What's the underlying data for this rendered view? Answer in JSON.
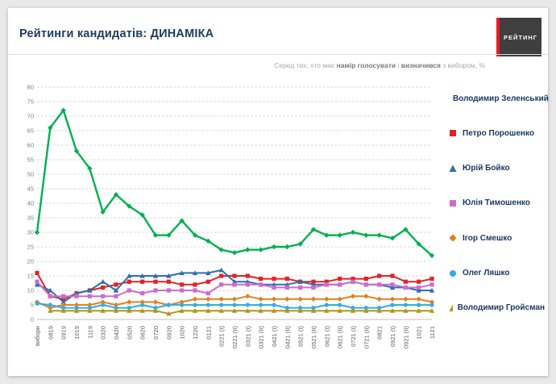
{
  "header": {
    "title": "Рейтинги кандидатів: ДИНАМІКА"
  },
  "logo": {
    "text": "РЕЙТИНГ"
  },
  "subtitle": {
    "parts": [
      {
        "text": "Серед тих, хто має ",
        "bold": false
      },
      {
        "text": "намір голосувати",
        "bold": true
      },
      {
        "text": " і ",
        "bold": false
      },
      {
        "text": "визначився",
        "bold": true
      },
      {
        "text": " з вибором, %",
        "bold": false
      }
    ]
  },
  "chart_data": {
    "type": "line",
    "title": "Рейтинги кандидатів: ДИНАМІКА",
    "ylabel": "%",
    "ylim": [
      0,
      80
    ],
    "y_tick_step": 5,
    "grid": true,
    "legend_position": "right",
    "categories": [
      "вибори",
      "0819",
      "0919",
      "1019",
      "1119",
      "0320",
      "0420",
      "0520",
      "0620",
      "0720",
      "0920",
      "1020",
      "1220",
      "0121",
      "0221 (I)",
      "0221 (II)",
      "0321 (I)",
      "0321 (II)",
      "0421 (I)",
      "0421 (II)",
      "0521 (I)",
      "0521 (II)",
      "0621 (I)",
      "0621 (II)",
      "0721 (I)",
      "0721 (II)",
      "0821",
      "0921 (I)",
      "0921 (II)",
      "1021",
      "1121"
    ],
    "series": [
      {
        "name": "Володимир Зеленський",
        "color": "#00b050",
        "marker": "diamond",
        "values": [
          30,
          66,
          72,
          58,
          52,
          37,
          43,
          39,
          36,
          29,
          29,
          34,
          29,
          27,
          24,
          23,
          24,
          24,
          25,
          25,
          26,
          31,
          29,
          29,
          30,
          29,
          29,
          28,
          31,
          26,
          22
        ]
      },
      {
        "name": "Петро Порошенко",
        "color": "#e32226",
        "marker": "square",
        "values": [
          16,
          8,
          7,
          9,
          10,
          11,
          12,
          13,
          13,
          13,
          13,
          12,
          12,
          13,
          15,
          15,
          15,
          14,
          14,
          14,
          13,
          13,
          13,
          14,
          14,
          14,
          15,
          15,
          13,
          13,
          14
        ]
      },
      {
        "name": "Юрій Бойко",
        "color": "#2e6fad",
        "marker": "triangle",
        "values": [
          12,
          10,
          6,
          9,
          10,
          13,
          10,
          15,
          15,
          15,
          15,
          16,
          16,
          16,
          17,
          13,
          13,
          12,
          12,
          12,
          13,
          12,
          12,
          12,
          13,
          12,
          12,
          11,
          11,
          10,
          10
        ]
      },
      {
        "name": "Юлія Тимошенко",
        "color": "#cd6cce",
        "marker": "square",
        "values": [
          13,
          8,
          8,
          8,
          8,
          8,
          8,
          10,
          9,
          10,
          10,
          10,
          10,
          9,
          12,
          12,
          12,
          12,
          11,
          11,
          11,
          11,
          12,
          12,
          13,
          12,
          12,
          12,
          11,
          11,
          12
        ]
      },
      {
        "name": "Ігор Смешко",
        "color": "#e0821e",
        "marker": "diamond",
        "values": [
          6,
          4,
          5,
          5,
          5,
          6,
          5,
          6,
          6,
          6,
          5,
          6,
          7,
          7,
          7,
          7,
          8,
          7,
          7,
          7,
          7,
          7,
          7,
          7,
          8,
          8,
          7,
          7,
          7,
          7,
          6
        ]
      },
      {
        "name": "Олег Ляшко",
        "color": "#33aee3",
        "marker": "circle",
        "values": [
          5.5,
          5,
          4,
          4,
          4,
          5,
          4,
          4,
          5,
          4,
          5,
          5,
          5,
          5,
          5,
          5,
          5,
          5,
          5,
          4,
          4,
          4,
          5,
          5,
          4,
          4,
          4,
          5,
          5,
          5,
          5
        ]
      },
      {
        "name": "Володимир Гройсман",
        "color": "#b0961a",
        "marker": "triangle",
        "values": [
          null,
          3,
          3,
          3,
          3,
          3,
          3,
          3,
          3,
          3,
          2,
          3,
          3,
          3,
          3,
          3,
          3,
          3,
          3,
          3,
          3,
          3,
          3,
          3,
          3,
          3,
          3,
          3,
          3,
          3,
          3
        ]
      }
    ]
  }
}
